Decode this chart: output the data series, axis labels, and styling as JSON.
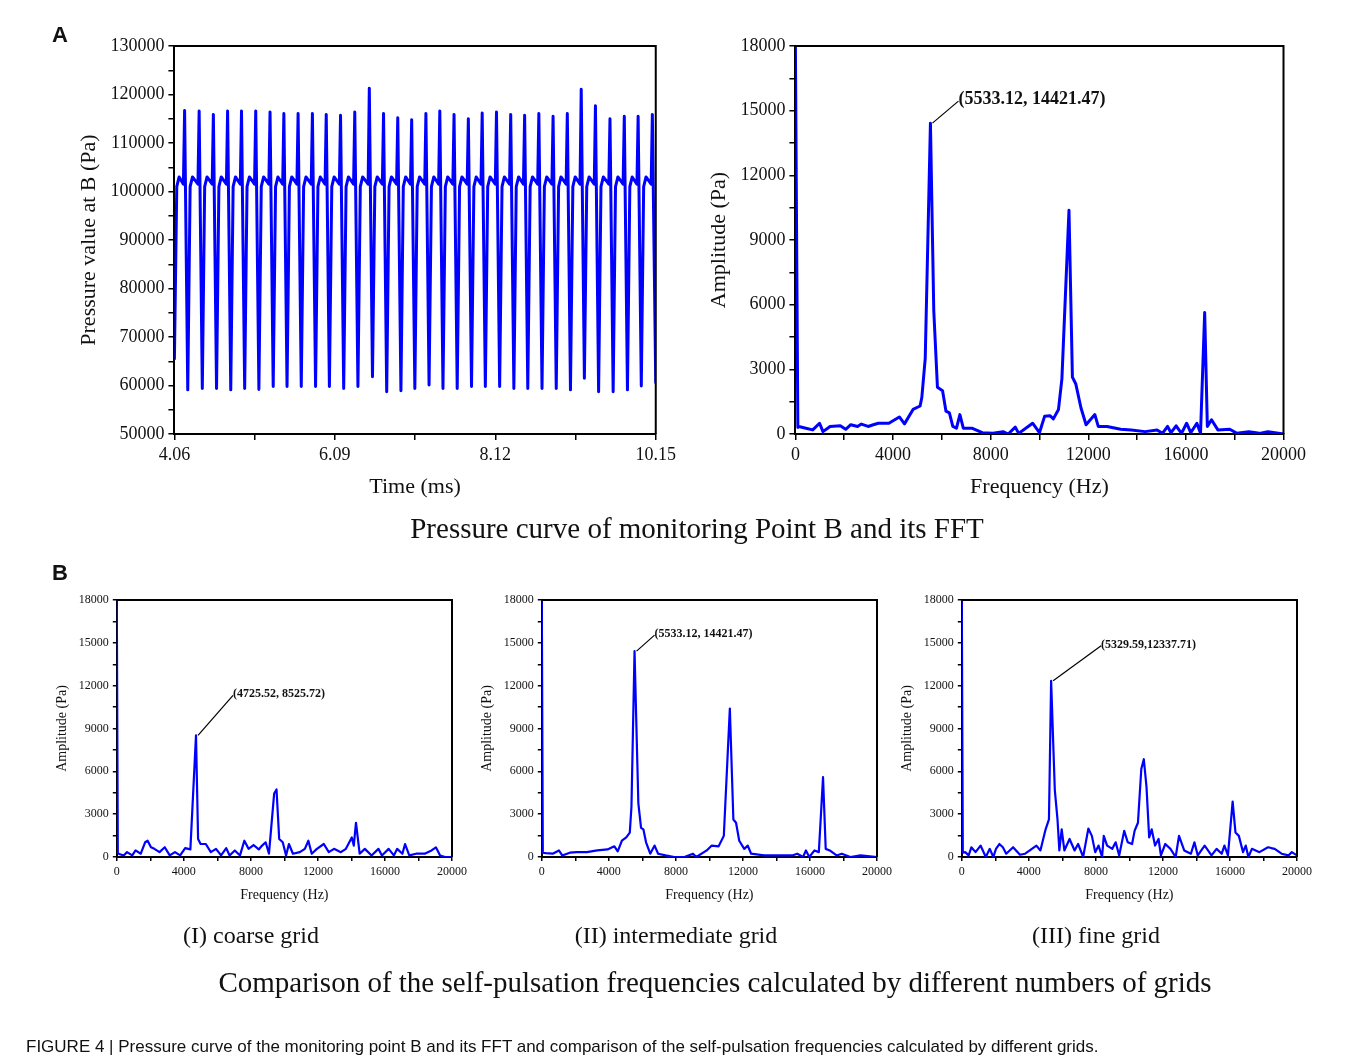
{
  "chart_data": [
    {
      "type": "line",
      "xlabel": "Time (ms)",
      "ylabel": "Pressure value at B (Pa)",
      "xlim": [
        4.06,
        10.15
      ],
      "ylim": [
        50000,
        130000
      ],
      "xticks": [
        4.06,
        {
          "value": 5.075,
          "label": null
        },
        6.09,
        {
          "value": 7.105,
          "label": null
        },
        8.12,
        {
          "value": 9.135,
          "label": null
        },
        10.15
      ],
      "yticks": [
        50000,
        {
          "value": 55000,
          "label": null
        },
        60000,
        {
          "value": 65000,
          "label": null
        },
        70000,
        {
          "value": 75000,
          "label": null
        },
        80000,
        {
          "value": 85000,
          "label": null
        },
        90000,
        {
          "value": 95000,
          "label": null
        },
        100000,
        {
          "value": 105000,
          "label": null
        },
        110000,
        {
          "value": 115000,
          "label": null
        },
        120000,
        {
          "value": 125000,
          "label": null
        },
        130000
      ],
      "annotations": [
        "A"
      ],
      "series": [
        {
          "color": "#0000ff",
          "x": [
            4.06,
            4.09,
            4.12,
            4.174,
            4.189,
            4.229,
            4.259,
            4.289,
            4.358,
            4.373,
            4.413,
            4.443,
            4.473,
            4.538,
            4.553,
            4.593,
            4.623,
            4.653,
            4.718,
            4.733,
            4.773,
            4.803,
            4.833,
            4.894,
            4.909,
            4.949,
            4.979,
            5.009,
            5.074,
            5.089,
            5.129,
            5.159,
            5.189,
            5.255,
            5.27,
            5.31,
            5.34,
            5.37,
            5.43,
            5.445,
            5.485,
            5.515,
            5.545,
            5.61,
            5.625,
            5.665,
            5.695,
            5.725,
            5.791,
            5.806,
            5.846,
            5.876,
            5.906,
            5.966,
            5.981,
            6.021,
            6.051,
            6.081,
            6.147,
            6.162,
            6.202,
            6.232,
            6.262,
            6.327,
            6.342,
            6.382,
            6.412,
            6.442,
            6.511,
            6.526,
            6.566,
            6.596,
            6.626,
            6.691,
            6.706,
            6.746,
            6.776,
            6.806,
            6.871,
            6.886,
            6.926,
            6.956,
            6.986,
            7.047,
            7.062,
            7.102,
            7.132,
            7.162,
            7.227,
            7.242,
            7.282,
            7.312,
            7.342,
            7.403,
            7.418,
            7.458,
            7.488,
            7.518,
            7.583,
            7.598,
            7.638,
            7.668,
            7.698,
            7.764,
            7.779,
            7.819,
            7.849,
            7.879,
            7.939,
            7.954,
            7.994,
            8.024,
            8.054,
            8.12,
            8.135,
            8.175,
            8.205,
            8.235,
            8.3,
            8.315,
            8.355,
            8.385,
            8.415,
            8.476,
            8.491,
            8.531,
            8.561,
            8.591,
            8.656,
            8.671,
            8.711,
            8.741,
            8.771,
            8.836,
            8.851,
            8.891,
            8.921,
            8.951,
            9.016,
            9.031,
            9.071,
            9.101,
            9.131,
            9.192,
            9.207,
            9.247,
            9.277,
            9.307,
            9.372,
            9.387,
            9.427,
            9.457,
            9.487,
            9.556,
            9.571,
            9.611,
            9.641,
            9.671,
            9.737,
            9.752,
            9.792,
            9.822,
            9.852,
            9.912,
            9.927,
            9.967,
            9.997,
            10.027,
            10.092,
            10.107,
            10.15
          ],
          "values": [
            65300,
            101000,
            103000,
            101500,
            116700,
            59100,
            101000,
            103000,
            101500,
            116600,
            59400,
            101000,
            103000,
            101500,
            115900,
            59400,
            101000,
            103000,
            101500,
            116600,
            59100,
            101000,
            103000,
            101500,
            116600,
            59400,
            101000,
            103000,
            101500,
            116600,
            59200,
            101000,
            103000,
            101500,
            116400,
            59800,
            101000,
            103000,
            101500,
            116100,
            59800,
            101000,
            103000,
            101500,
            116100,
            59800,
            101000,
            103000,
            101500,
            116100,
            59800,
            101000,
            103000,
            101500,
            115900,
            59800,
            101000,
            103000,
            101500,
            115700,
            59400,
            101000,
            103000,
            101500,
            116400,
            59800,
            101000,
            103000,
            101500,
            121300,
            61800,
            101000,
            103000,
            101500,
            116100,
            58700,
            101000,
            103000,
            101500,
            115200,
            58900,
            101000,
            103000,
            101500,
            114800,
            59400,
            101000,
            103000,
            101500,
            116100,
            60100,
            101000,
            103000,
            101500,
            116600,
            59400,
            101000,
            103000,
            101500,
            115900,
            59400,
            101000,
            103000,
            101500,
            115000,
            59800,
            101000,
            103000,
            101500,
            116200,
            59800,
            101000,
            103000,
            101500,
            116400,
            59800,
            101000,
            103000,
            101500,
            115900,
            59400,
            101000,
            103000,
            101500,
            115700,
            59400,
            101000,
            103000,
            101500,
            116100,
            59400,
            101000,
            103000,
            101500,
            115500,
            59400,
            101000,
            103000,
            101500,
            116100,
            59100,
            101000,
            103000,
            101500,
            121100,
            61500,
            101000,
            103000,
            101500,
            117700,
            58700,
            101000,
            103000,
            101500,
            115000,
            58700,
            101000,
            103000,
            101500,
            115500,
            59100,
            101000,
            103000,
            101500,
            115500,
            59900,
            101000,
            103000,
            101500,
            115900,
            60400
          ]
        }
      ]
    },
    {
      "type": "line",
      "xlabel": "Frequency (Hz)",
      "ylabel": "Amplitude (Pa)",
      "xlim": [
        0,
        20000
      ],
      "ylim": [
        0,
        18000
      ],
      "xticks": [
        0,
        {
          "value": 2000,
          "label": null
        },
        4000,
        {
          "value": 6000,
          "label": null
        },
        8000,
        {
          "value": 10000,
          "label": null
        },
        12000,
        {
          "value": 14000,
          "label": null
        },
        16000,
        {
          "value": 18000,
          "label": null
        },
        20000
      ],
      "yticks": [
        0,
        {
          "value": 1500,
          "label": null
        },
        3000,
        {
          "value": 4500,
          "label": null
        },
        6000,
        {
          "value": 7500,
          "label": null
        },
        9000,
        {
          "value": 10500,
          "label": null
        },
        12000,
        {
          "value": 13500,
          "label": null
        },
        15000,
        {
          "value": 16500,
          "label": null
        },
        18000
      ],
      "annotations": [
        {
          "text": "(5533.12, 14421.47)",
          "x": 5533.12,
          "y": 14421.47
        },
        "Pressure curve of monitoring Point B and its FFT"
      ],
      "series": [
        {
          "color": "#0000ff",
          "x": [
            0,
            100,
            140,
            430,
            710,
            990,
            1130,
            1420,
            1840,
            2060,
            2270,
            2550,
            2700,
            2980,
            3190,
            3400,
            3830,
            4260,
            4470,
            4820,
            5110,
            5180,
            5320,
            5533.12,
            5670,
            5820,
            6030,
            6170,
            6310,
            6450,
            6600,
            6740,
            6880,
            7230,
            7660,
            8090,
            8510,
            8720,
            9010,
            9150,
            9720,
            10000,
            10210,
            10430,
            10570,
            10780,
            10920,
            11210,
            11350,
            11490,
            11700,
            11910,
            12270,
            12410,
            12770,
            13330,
            13760,
            14330,
            14820,
            15040,
            15250,
            15390,
            15600,
            15820,
            16030,
            16200,
            16450,
            16600,
            16770,
            16880,
            17050,
            17310,
            17800,
            18090,
            18580,
            19010,
            19360,
            20000
          ],
          "values": [
            18000,
            300,
            350,
            270,
            190,
            500,
            110,
            350,
            380,
            220,
            430,
            350,
            460,
            350,
            430,
            500,
            500,
            790,
            470,
            1140,
            1300,
            1690,
            3510,
            14421.47,
            5720,
            2170,
            2010,
            1060,
            980,
            350,
            270,
            900,
            270,
            270,
            60,
            30,
            110,
            0,
            320,
            30,
            500,
            60,
            820,
            850,
            700,
            1140,
            2560,
            10380,
            2640,
            2320,
            1220,
            430,
            900,
            350,
            350,
            220,
            190,
            110,
            190,
            30,
            350,
            60,
            380,
            30,
            500,
            60,
            500,
            30,
            5640,
            350,
            660,
            190,
            220,
            30,
            110,
            30,
            110,
            0
          ]
        }
      ]
    },
    {
      "type": "line",
      "title": "(I) coarse grid",
      "xlabel": "Frequency (Hz)",
      "ylabel": "Amplitude (Pa)",
      "xlim": [
        0,
        20000
      ],
      "ylim": [
        0,
        18000
      ],
      "xticks": [
        0,
        {
          "value": 2000,
          "label": null
        },
        4000,
        {
          "value": 6000,
          "label": null
        },
        8000,
        {
          "value": 10000,
          "label": null
        },
        12000,
        {
          "value": 14000,
          "label": null
        },
        16000,
        {
          "value": 18000,
          "label": null
        },
        20000
      ],
      "yticks": [
        0,
        {
          "value": 1500,
          "label": null
        },
        3000,
        {
          "value": 4500,
          "label": null
        },
        6000,
        {
          "value": 7500,
          "label": null
        },
        9000,
        {
          "value": 10500,
          "label": null
        },
        12000,
        {
          "value": 13500,
          "label": null
        },
        15000,
        {
          "value": 16500,
          "label": null
        },
        18000
      ],
      "annotations": [
        "B",
        {
          "text": "(4725.52, 8525.72)",
          "x": 4725.52,
          "y": 8525.72
        }
      ],
      "series": [
        {
          "color": "#0000ff",
          "x": [
            0,
            60,
            100,
            410,
            610,
            920,
            1120,
            1430,
            1690,
            1840,
            2040,
            2240,
            2550,
            2860,
            3160,
            3470,
            3780,
            4080,
            4390,
            4725.52,
            4850,
            5000,
            5310,
            5610,
            5920,
            6220,
            6530,
            6730,
            7040,
            7350,
            7610,
            7860,
            8160,
            8470,
            8670,
            8880,
            9080,
            9390,
            9530,
            9690,
            9900,
            10100,
            10270,
            10510,
            10920,
            11220,
            11430,
            11630,
            11940,
            12350,
            12650,
            12960,
            13370,
            13670,
            14020,
            14140,
            14270,
            14490,
            14800,
            15200,
            15610,
            15820,
            16220,
            16530,
            16730,
            17040,
            17200,
            17450,
            17860,
            18370,
            18780,
            19040,
            19290,
            19590,
            20000
          ],
          "values": [
            18000,
            300,
            230,
            110,
            340,
            110,
            460,
            230,
            1030,
            1140,
            680,
            570,
            340,
            680,
            110,
            340,
            110,
            620,
            530,
            8525.72,
            1260,
            910,
            910,
            340,
            570,
            110,
            620,
            110,
            460,
            110,
            1140,
            570,
            840,
            530,
            800,
            1030,
            230,
            4450,
            4730,
            1260,
            1030,
            110,
            910,
            230,
            340,
            570,
            1140,
            230,
            570,
            910,
            340,
            570,
            340,
            570,
            1370,
            800,
            2400,
            230,
            570,
            110,
            570,
            110,
            570,
            110,
            570,
            230,
            910,
            110,
            230,
            230,
            460,
            680,
            110,
            0,
            0
          ]
        }
      ]
    },
    {
      "type": "line",
      "title": "(II) intermediate grid",
      "xlabel": "Frequency (Hz)",
      "ylabel": "Amplitude (Pa)",
      "xlim": [
        0,
        20000
      ],
      "ylim": [
        0,
        18000
      ],
      "xticks": [
        0,
        {
          "value": 2000,
          "label": null
        },
        4000,
        {
          "value": 6000,
          "label": null
        },
        8000,
        {
          "value": 10000,
          "label": null
        },
        12000,
        {
          "value": 14000,
          "label": null
        },
        16000,
        {
          "value": 18000,
          "label": null
        },
        20000
      ],
      "yticks": [
        0,
        {
          "value": 1500,
          "label": null
        },
        3000,
        {
          "value": 4500,
          "label": null
        },
        6000,
        {
          "value": 7500,
          "label": null
        },
        9000,
        {
          "value": 10500,
          "label": null
        },
        12000,
        {
          "value": 13500,
          "label": null
        },
        15000,
        {
          "value": 16500,
          "label": null
        },
        18000
      ],
      "annotations": [
        {
          "text": "(5533.12, 14421.47)",
          "x": 5533.12,
          "y": 14421.47
        }
      ],
      "series": [
        {
          "color": "#0000ff",
          "x": [
            0,
            60,
            240,
            650,
            1020,
            1220,
            1670,
            2080,
            2690,
            3310,
            3920,
            4330,
            4530,
            4780,
            5040,
            5250,
            5350,
            5533.12,
            5760,
            5920,
            6060,
            6220,
            6470,
            6730,
            6940,
            7390,
            7900,
            8510,
            9020,
            9220,
            9840,
            10140,
            10550,
            10860,
            11220,
            11430,
            11590,
            11780,
            12080,
            12290,
            12490,
            13310,
            14120,
            14940,
            15240,
            15590,
            15760,
            15960,
            16270,
            16530,
            16780,
            16940,
            17180,
            17590,
            17900,
            18410,
            19020,
            20000
          ],
          "values": [
            18000,
            300,
            270,
            230,
            460,
            110,
            300,
            340,
            340,
            460,
            530,
            750,
            390,
            1140,
            1370,
            1710,
            3540,
            14421.47,
            3770,
            2050,
            1940,
            1030,
            230,
            800,
            230,
            110,
            0,
            0,
            230,
            0,
            460,
            800,
            750,
            1480,
            10390,
            2630,
            2400,
            1140,
            570,
            800,
            230,
            110,
            110,
            110,
            230,
            0,
            460,
            0,
            460,
            340,
            5590,
            570,
            460,
            110,
            230,
            0,
            110,
            0
          ]
        }
      ]
    },
    {
      "type": "line",
      "title": "(III) fine grid",
      "xlabel": "Frequency (Hz)",
      "ylabel": "Amplitude (Pa)",
      "xlim": [
        0,
        20000
      ],
      "ylim": [
        0,
        18000
      ],
      "xticks": [
        0,
        {
          "value": 2000,
          "label": null
        },
        4000,
        {
          "value": 6000,
          "label": null
        },
        8000,
        {
          "value": 10000,
          "label": null
        },
        12000,
        {
          "value": 14000,
          "label": null
        },
        16000,
        {
          "value": 18000,
          "label": null
        },
        20000
      ],
      "yticks": [
        0,
        {
          "value": 1500,
          "label": null
        },
        3000,
        {
          "value": 4500,
          "label": null
        },
        6000,
        {
          "value": 7500,
          "label": null
        },
        9000,
        {
          "value": 10500,
          "label": null
        },
        12000,
        {
          "value": 13500,
          "label": null
        },
        15000,
        {
          "value": 16500,
          "label": null
        },
        18000
      ],
      "annotations": [
        {
          "text": "(5329.59,12337.71)",
          "x": 5329.59,
          "y": 12337.71
        },
        "Comparison of the self-pulsation frequencies calculated by different numbers of grids",
        "FIGURE 4 | Pressure curve of the monitoring point B and its FFT and comparison of the self-pulsation frequencies calculated by different grids."
      ],
      "series": [
        {
          "color": "#0000ff",
          "x": [
            0,
            60,
            200,
            410,
            570,
            820,
            1120,
            1430,
            1670,
            1880,
            2040,
            2240,
            2450,
            2650,
            3060,
            3470,
            3780,
            4180,
            4450,
            4690,
            5000,
            5200,
            5329.59,
            5550,
            5710,
            5820,
            5960,
            6120,
            6430,
            6730,
            6940,
            7240,
            7550,
            7760,
            7960,
            8160,
            8370,
            8470,
            8670,
            8980,
            9180,
            9390,
            9690,
            9900,
            10160,
            10310,
            10510,
            10710,
            10860,
            11020,
            11180,
            11330,
            11530,
            11740,
            11880,
            12140,
            12450,
            12760,
            12960,
            13270,
            13670,
            13880,
            14080,
            14490,
            14900,
            15200,
            15510,
            15670,
            15880,
            16160,
            16330,
            16530,
            16780,
            16940,
            17100,
            17310,
            17760,
            18270,
            18670,
            19080,
            19490,
            19690,
            20000
          ],
          "values": [
            18000,
            300,
            340,
            110,
            680,
            340,
            800,
            0,
            570,
            0,
            570,
            910,
            680,
            230,
            680,
            160,
            230,
            570,
            800,
            460,
            1940,
            2630,
            12337.71,
            4680,
            2630,
            460,
            1940,
            460,
            1260,
            460,
            910,
            0,
            1990,
            1480,
            340,
            800,
            0,
            1480,
            800,
            570,
            1030,
            110,
            1830,
            1030,
            910,
            1830,
            2400,
            6160,
            6850,
            4910,
            1370,
            1940,
            800,
            1260,
            110,
            910,
            570,
            0,
            1480,
            460,
            230,
            1030,
            110,
            800,
            110,
            570,
            230,
            800,
            110,
            3880,
            1710,
            1480,
            340,
            800,
            0,
            570,
            340,
            680,
            570,
            230,
            110,
            340,
            110
          ]
        }
      ]
    }
  ]
}
